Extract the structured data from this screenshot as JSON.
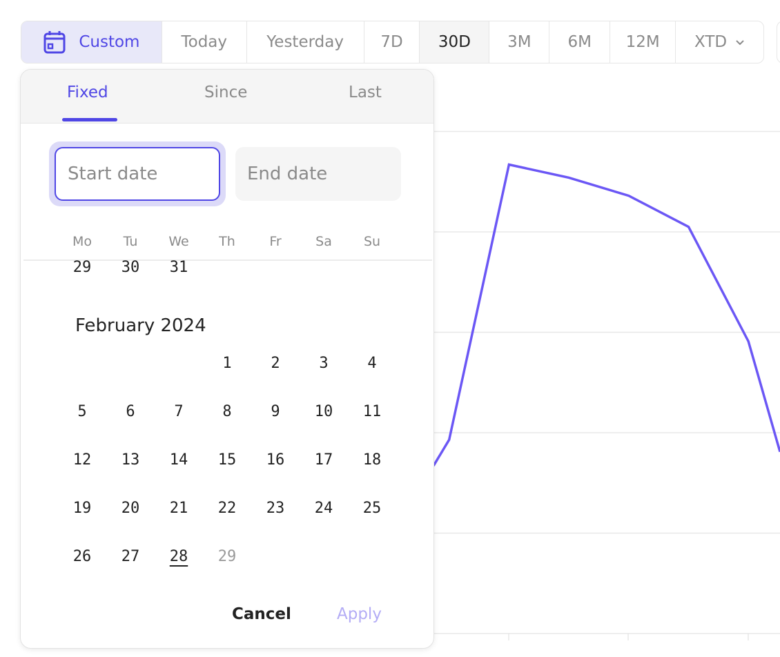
{
  "toolbar": {
    "ranges": [
      {
        "label": "Custom",
        "icon": "calendar-icon",
        "state": "selected"
      },
      {
        "label": "Today"
      },
      {
        "label": "Yesterday"
      },
      {
        "label": "7D"
      },
      {
        "label": "30D",
        "state": "active"
      },
      {
        "label": "3M"
      },
      {
        "label": "6M"
      },
      {
        "label": "12M"
      },
      {
        "label": "XTD",
        "icon": "chevron-down-icon"
      }
    ]
  },
  "picker": {
    "tabs": [
      "Fixed",
      "Since",
      "Last"
    ],
    "active_tab": "Fixed",
    "start_placeholder": "Start date",
    "end_placeholder": "End date",
    "weekdays": [
      "Mo",
      "Tu",
      "We",
      "Th",
      "Fr",
      "Sa",
      "Su"
    ],
    "prev_month_tail": [
      "29",
      "30",
      "31"
    ],
    "month_title": "February 2024",
    "first_weekday_index": 3,
    "days": [
      "1",
      "2",
      "3",
      "4",
      "5",
      "6",
      "7",
      "8",
      "9",
      "10",
      "11",
      "12",
      "13",
      "14",
      "15",
      "16",
      "17",
      "18",
      "19",
      "20",
      "21",
      "22",
      "23",
      "24",
      "25",
      "26",
      "27",
      "28",
      "29"
    ],
    "today": "28",
    "disabled_days": [
      "29"
    ],
    "cancel_label": "Cancel",
    "apply_label": "Apply"
  },
  "colors": {
    "accent": "#4f46e5",
    "line": "#6b57f5",
    "apply_disabled": "#b3acf5"
  },
  "chart_data": {
    "type": "line",
    "gridlines": 6,
    "values": [
      1.67,
      1.93,
      4.67,
      4.54,
      4.36,
      4.05,
      2.91,
      1.81
    ],
    "ylim": [
      0,
      5
    ],
    "grid": true
  }
}
